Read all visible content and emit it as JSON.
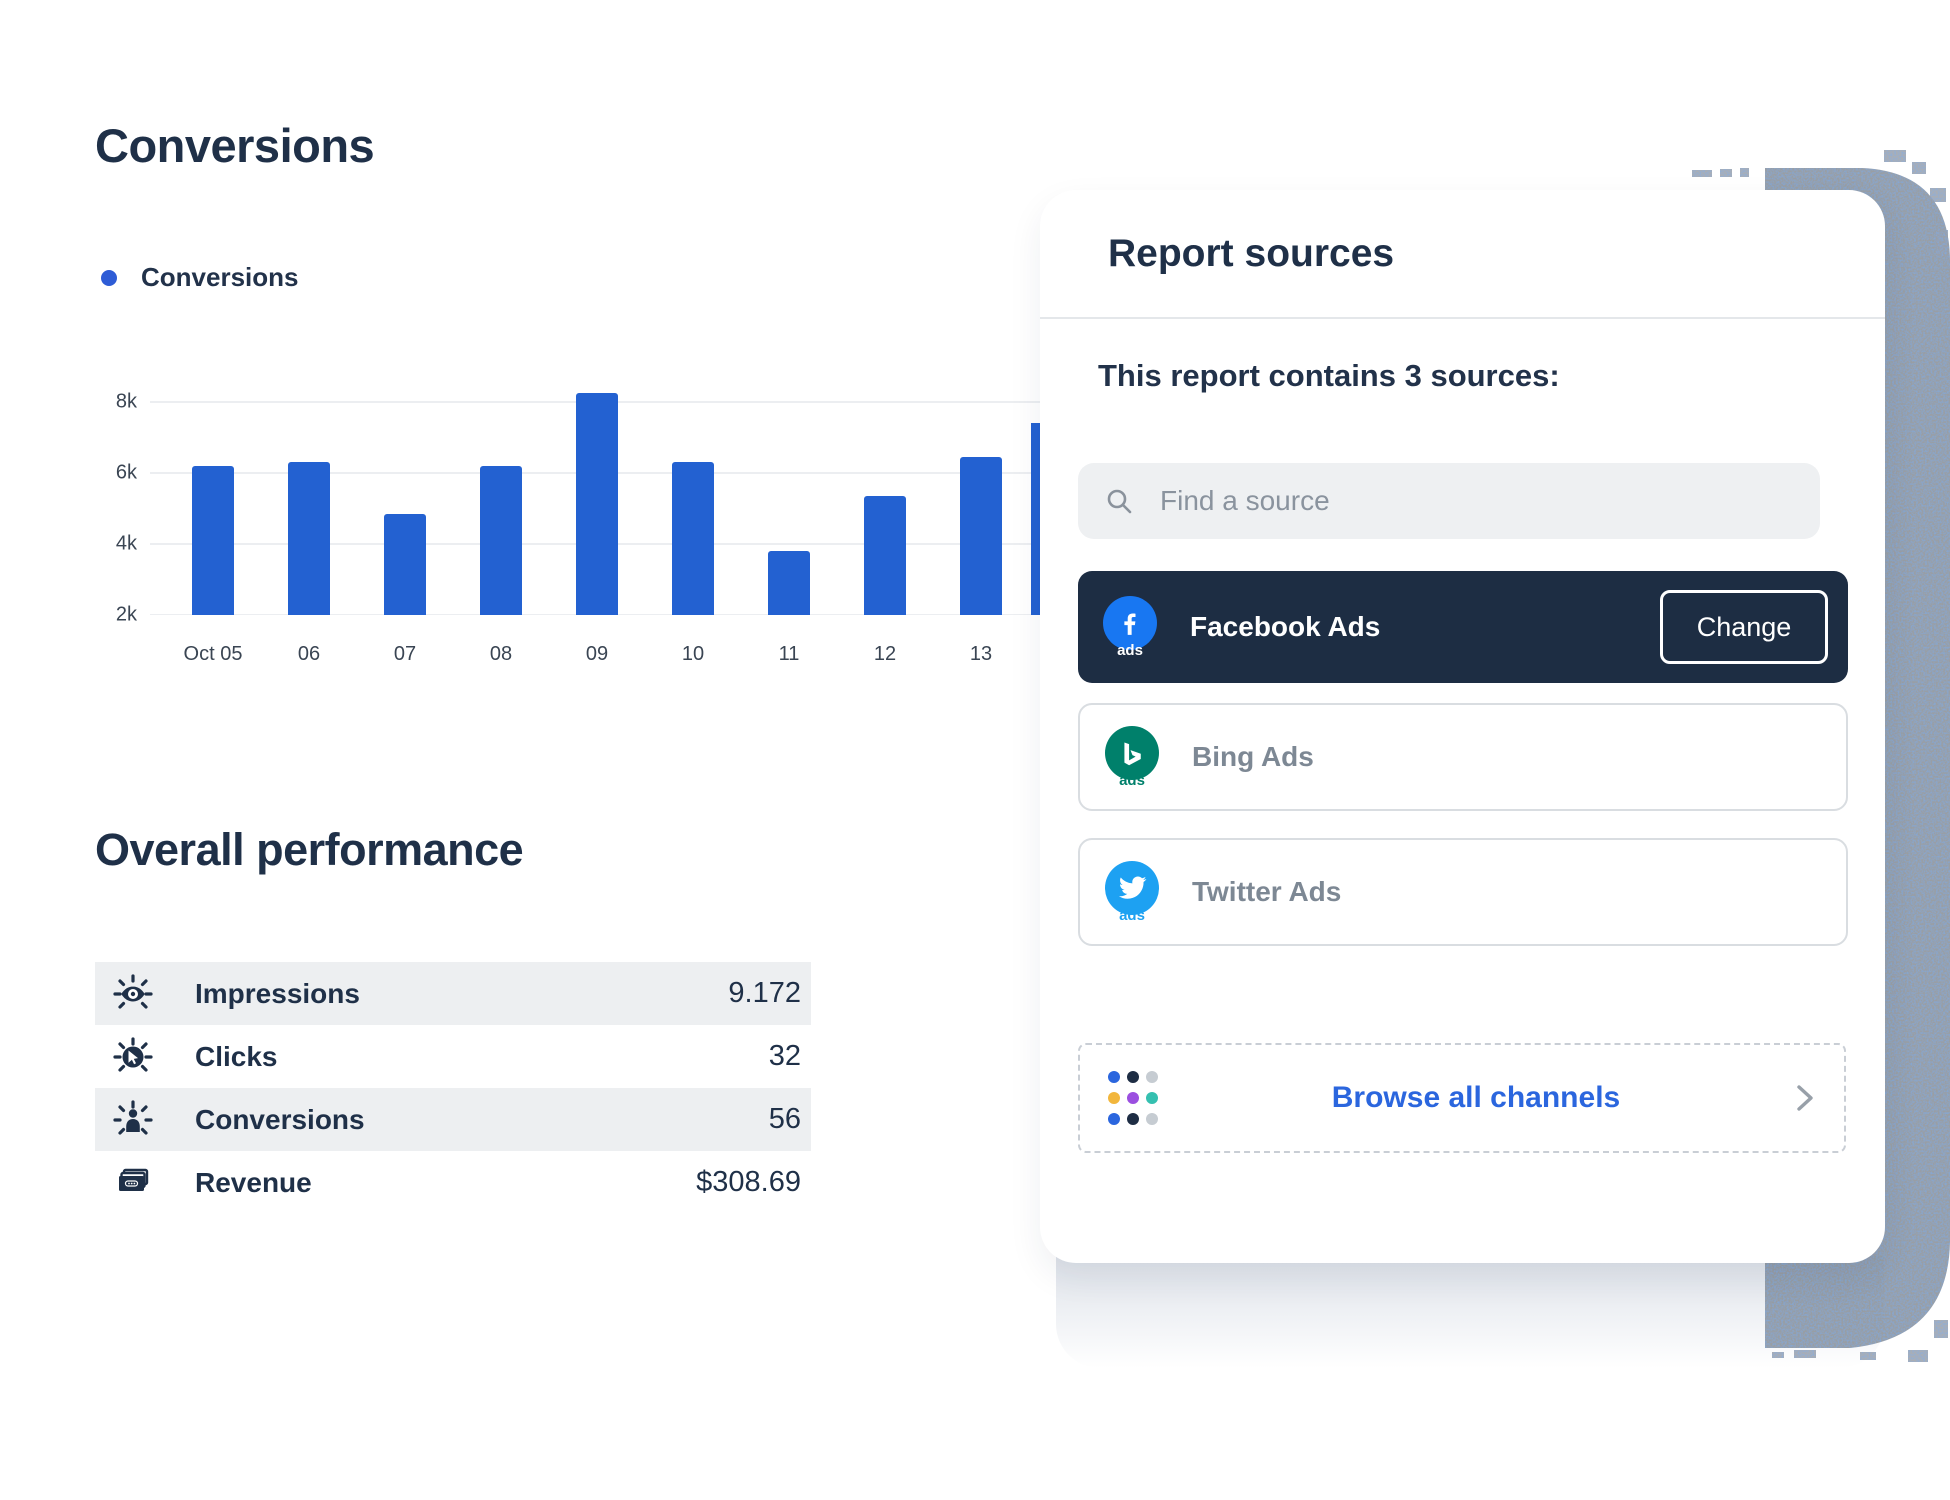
{
  "page": {
    "background": "#ffffff"
  },
  "left": {
    "title": "Conversions",
    "legend": {
      "label": "Conversions",
      "dot_color": "#2e5cd6"
    },
    "overall_title": "Overall performance",
    "metrics": [
      {
        "icon": "eye-impressions",
        "label": "Impressions",
        "value": "9.172",
        "shaded": true
      },
      {
        "icon": "cursor-clicks",
        "label": "Clicks",
        "value": "32",
        "shaded": false
      },
      {
        "icon": "person-conversions",
        "label": "Conversions",
        "value": "56",
        "shaded": true
      },
      {
        "icon": "banknotes-revenue",
        "label": "Revenue",
        "value": "$308.69",
        "shaded": false
      }
    ]
  },
  "chart_data": {
    "type": "bar",
    "title": "Conversions",
    "legend_entries": [
      "Conversions"
    ],
    "legend_position": "top-left",
    "categories": [
      "Oct 05",
      "06",
      "07",
      "08",
      "09",
      "10",
      "11",
      "12",
      "13"
    ],
    "values": [
      6200,
      6300,
      4850,
      6200,
      8250,
      6300,
      3800,
      5350,
      6450
    ],
    "clipped_bar_value": 7400,
    "bar_color": "#2361d1",
    "yticks": [
      {
        "value": 8000,
        "label": "8k"
      },
      {
        "value": 6000,
        "label": "6k"
      },
      {
        "value": 4000,
        "label": "4k"
      },
      {
        "value": 2000,
        "label": "2k"
      }
    ],
    "ylim": [
      2000,
      8400
    ],
    "xlabel": "",
    "ylabel": "",
    "grid": true
  },
  "panel": {
    "title": "Report sources",
    "subtitle": "This report contains 3 sources:",
    "search": {
      "placeholder": "Find a source"
    },
    "sources": [
      {
        "name": "Facebook Ads",
        "brand": "facebook",
        "selected": true,
        "action_label": "Change",
        "brand_color": "#1877f2",
        "ads_text": "ads",
        "ads_color": "#ffffff"
      },
      {
        "name": "Bing Ads",
        "brand": "bing",
        "selected": false,
        "brand_color": "#00806b",
        "ads_text": "ads",
        "ads_color": "#00806b"
      },
      {
        "name": "Twitter Ads",
        "brand": "twitter",
        "selected": false,
        "brand_color": "#1da1f2",
        "ads_text": "ads",
        "ads_color": "#1da1f2"
      }
    ],
    "browse": {
      "label": "Browse all channels",
      "dot_colors": [
        "#2b66de",
        "#1e2d44",
        "#c6ccd2",
        "#f2b63c",
        "#9b4fe0",
        "#35c0b0",
        "#2b66de",
        "#1e2d44",
        "#c6ccd2"
      ]
    },
    "selected_row_bg": "#1d2d43",
    "muted_text": "#7d8894"
  }
}
